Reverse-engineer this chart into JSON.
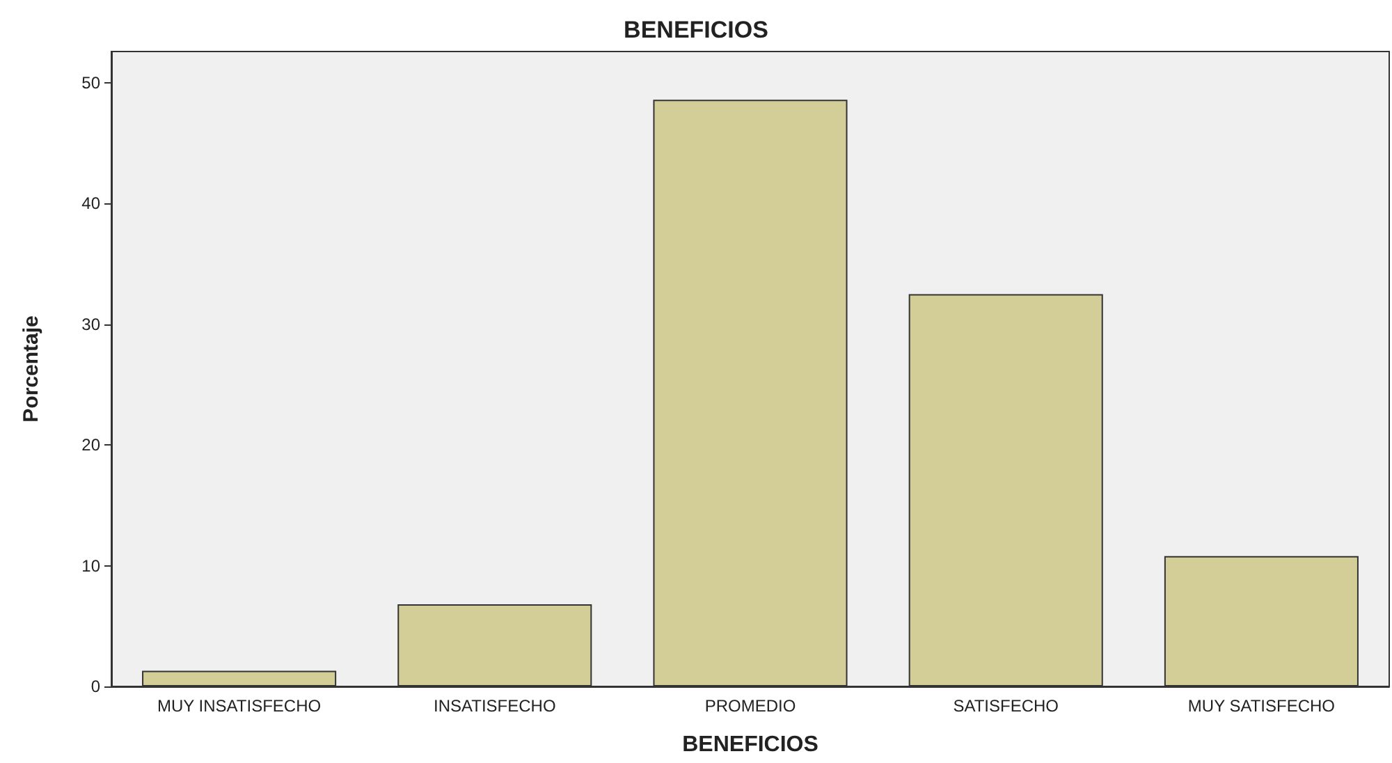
{
  "chart_data": {
    "type": "bar",
    "title": "BENEFICIOS",
    "xlabel": "BENEFICIOS",
    "ylabel": "Porcentaje",
    "categories": [
      "MUY INSATISFECHO",
      "INSATISFECHO",
      "PROMEDIO",
      "SATISFECHO",
      "MUY SATISFECHO"
    ],
    "values": [
      1.3,
      6.8,
      48.6,
      32.5,
      10.8
    ],
    "color": "#d3ce97",
    "ylim": [
      0,
      52.6
    ],
    "yticks": [
      0,
      10,
      20,
      30,
      40,
      50
    ]
  }
}
